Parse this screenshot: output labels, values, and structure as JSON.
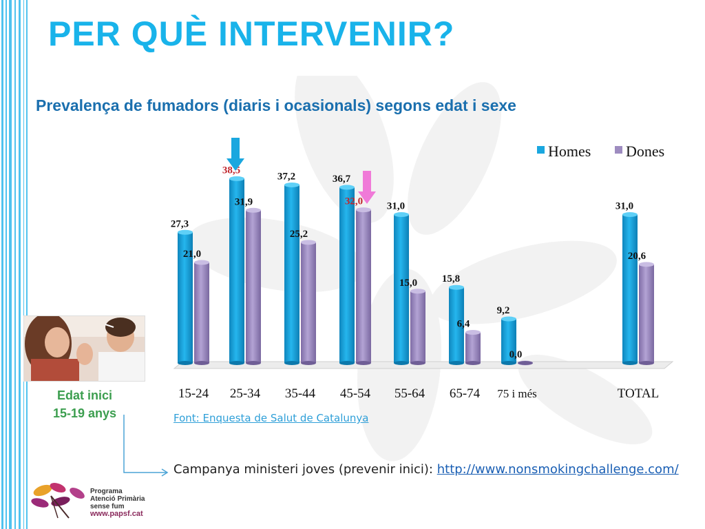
{
  "slide": {
    "title": "PER QUÈ INTERVENIR?",
    "subtitle": "Prevalença de fumadors (diaris i ocasionals) segons edat i sexe",
    "edat_label": "Edat inici",
    "edat_range": "15-19 anys",
    "source": "Font: Enquesta de Salut de Catalunya",
    "campaign_text": "Campanya  ministeri joves (prevenir inici): ",
    "campaign_link": "http://www.nonsmokingchallenge.com/",
    "logo": {
      "line1": "Programa",
      "line2": "Atenció Primària",
      "line3": "sense fum",
      "url": "www.papsf.cat"
    }
  },
  "colors": {
    "title": "#19b3ea",
    "subtitle": "#1a6fae",
    "homes": "#1aa7df",
    "dones": "#9e8cc0",
    "highlight_label": "#c0262c",
    "arrow_blue": "#1aa7df",
    "arrow_pink": "#f07ad8",
    "edat": "#3c9e4f"
  },
  "chart_data": {
    "type": "bar",
    "categories": [
      "15-24",
      "25-34",
      "35-44",
      "45-54",
      "55-64",
      "65-74",
      "75 i més",
      "TOTAL"
    ],
    "series": [
      {
        "name": "Homes",
        "values": [
          27.3,
          38.5,
          37.2,
          36.7,
          31.0,
          15.8,
          9.2,
          31.0
        ],
        "labels": [
          "27,3",
          "38,5",
          "37,2",
          "36,7",
          "31,0",
          "15,8",
          "9,2",
          "31,0"
        ]
      },
      {
        "name": "Dones",
        "values": [
          21.0,
          31.9,
          25.2,
          32.0,
          15.0,
          6.4,
          0.0,
          20.6
        ],
        "labels": [
          "21,0",
          "31,9",
          "25,2",
          "32,0",
          "15,0",
          "6,4",
          "0,0",
          "20,6"
        ]
      }
    ],
    "highlighted": [
      {
        "series": "Homes",
        "category": "25-34",
        "arrow": "blue"
      },
      {
        "series": "Dones",
        "category": "45-54",
        "arrow": "pink"
      }
    ],
    "legend_position": "top-right",
    "ylim": [
      0,
      45
    ],
    "grid": false
  }
}
